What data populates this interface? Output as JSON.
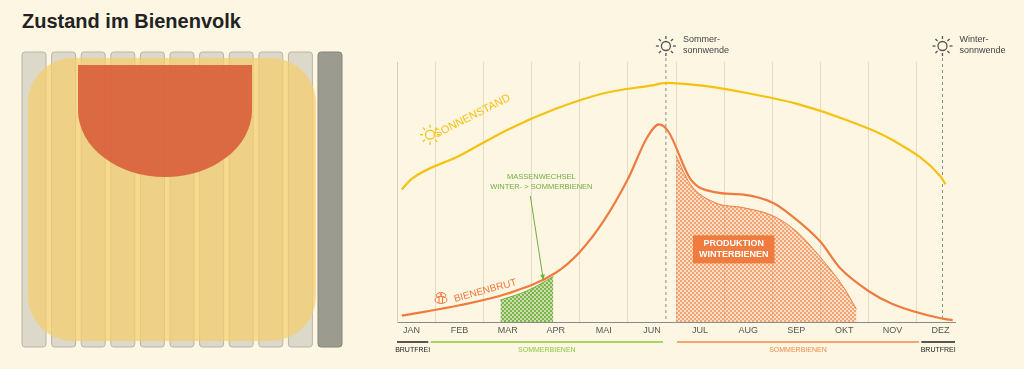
{
  "chart_data": {
    "type": "line",
    "title": "Zustand im Bienenvolk",
    "xlim": [
      -0.3,
      11.3
    ],
    "xticks": [
      {
        "value": 0,
        "label": "JAN"
      },
      {
        "value": 1,
        "label": "FEB"
      },
      {
        "value": 2,
        "label": "MAR"
      },
      {
        "value": 3,
        "label": "APR"
      },
      {
        "value": 4,
        "label": "MAI"
      },
      {
        "value": 5,
        "label": "JUN"
      },
      {
        "value": 6,
        "label": "JUL"
      },
      {
        "value": 7,
        "label": "AUG"
      },
      {
        "value": 8,
        "label": "SEP"
      },
      {
        "value": 9,
        "label": "OKT"
      },
      {
        "value": 10,
        "label": "NOV"
      },
      {
        "value": 11,
        "label": "DEZ"
      }
    ],
    "ylim": [
      0,
      100
    ],
    "grid": true,
    "tick_labels": "x",
    "series": [
      {
        "name": "SONNENSTAND",
        "type": "line",
        "color": "#f5c211",
        "x": [
          -0.2,
          0,
          1,
          2,
          3,
          4,
          5,
          5.3,
          6,
          7,
          8,
          9,
          10,
          11,
          11.1
        ],
        "values": [
          51,
          55,
          64,
          74,
          82,
          88,
          91,
          92,
          91,
          88,
          84,
          78,
          70,
          56,
          53
        ]
      },
      {
        "name": "BIENENBRUT",
        "type": "line",
        "color": "#ef7b3e",
        "x": [
          -0.2,
          1,
          2,
          3,
          3.5,
          4,
          4.5,
          4.9,
          5.15,
          5.35,
          5.8,
          6.3,
          6.9,
          7.5,
          7.9,
          8.5,
          8.9,
          9.5,
          10,
          11,
          11.25
        ],
        "values": [
          2.5,
          6.5,
          11,
          19,
          27,
          39,
          55,
          71,
          76,
          73,
          55,
          50,
          49,
          46,
          41,
          31,
          21,
          12,
          7,
          1.5,
          0.8
        ]
      },
      {
        "name": "MASSENWECHSEL\nWINTER- > SOMMERBIENEN",
        "type": "area",
        "color": "#6fae3f",
        "x": [
          1.85,
          2.4,
          2.95
        ],
        "values": [
          8.5,
          12,
          17.5
        ]
      },
      {
        "name": "PRODUKTION\nWINTERBIENEN",
        "type": "area",
        "color": "#ef7b3e",
        "x": [
          5.5,
          5.8,
          6.3,
          6.9,
          7.5,
          8,
          8.5,
          9,
          9.25
        ],
        "values": [
          64,
          53,
          46,
          44,
          41,
          35,
          25,
          13,
          5
        ]
      }
    ],
    "annotations": [
      {
        "x": 5.29,
        "label": "Sommer-\nsonnwende"
      },
      {
        "x": 11.04,
        "label": "Winter-\nsonnwende"
      }
    ],
    "periods": [
      {
        "label": "BRUTFREI",
        "start": -0.3,
        "end": 0.35,
        "color": "#222222"
      },
      {
        "label": "SOMMERBIENEN",
        "start": 0.4,
        "end": 5.23,
        "color": "#8cc63f"
      },
      {
        "label": "SOMMERBIENEN",
        "start": 5.52,
        "end": 10.55,
        "color": "#f08a4b"
      },
      {
        "label": "BRUTFREI",
        "start": 10.6,
        "end": 11.3,
        "color": "#222222"
      }
    ]
  }
}
